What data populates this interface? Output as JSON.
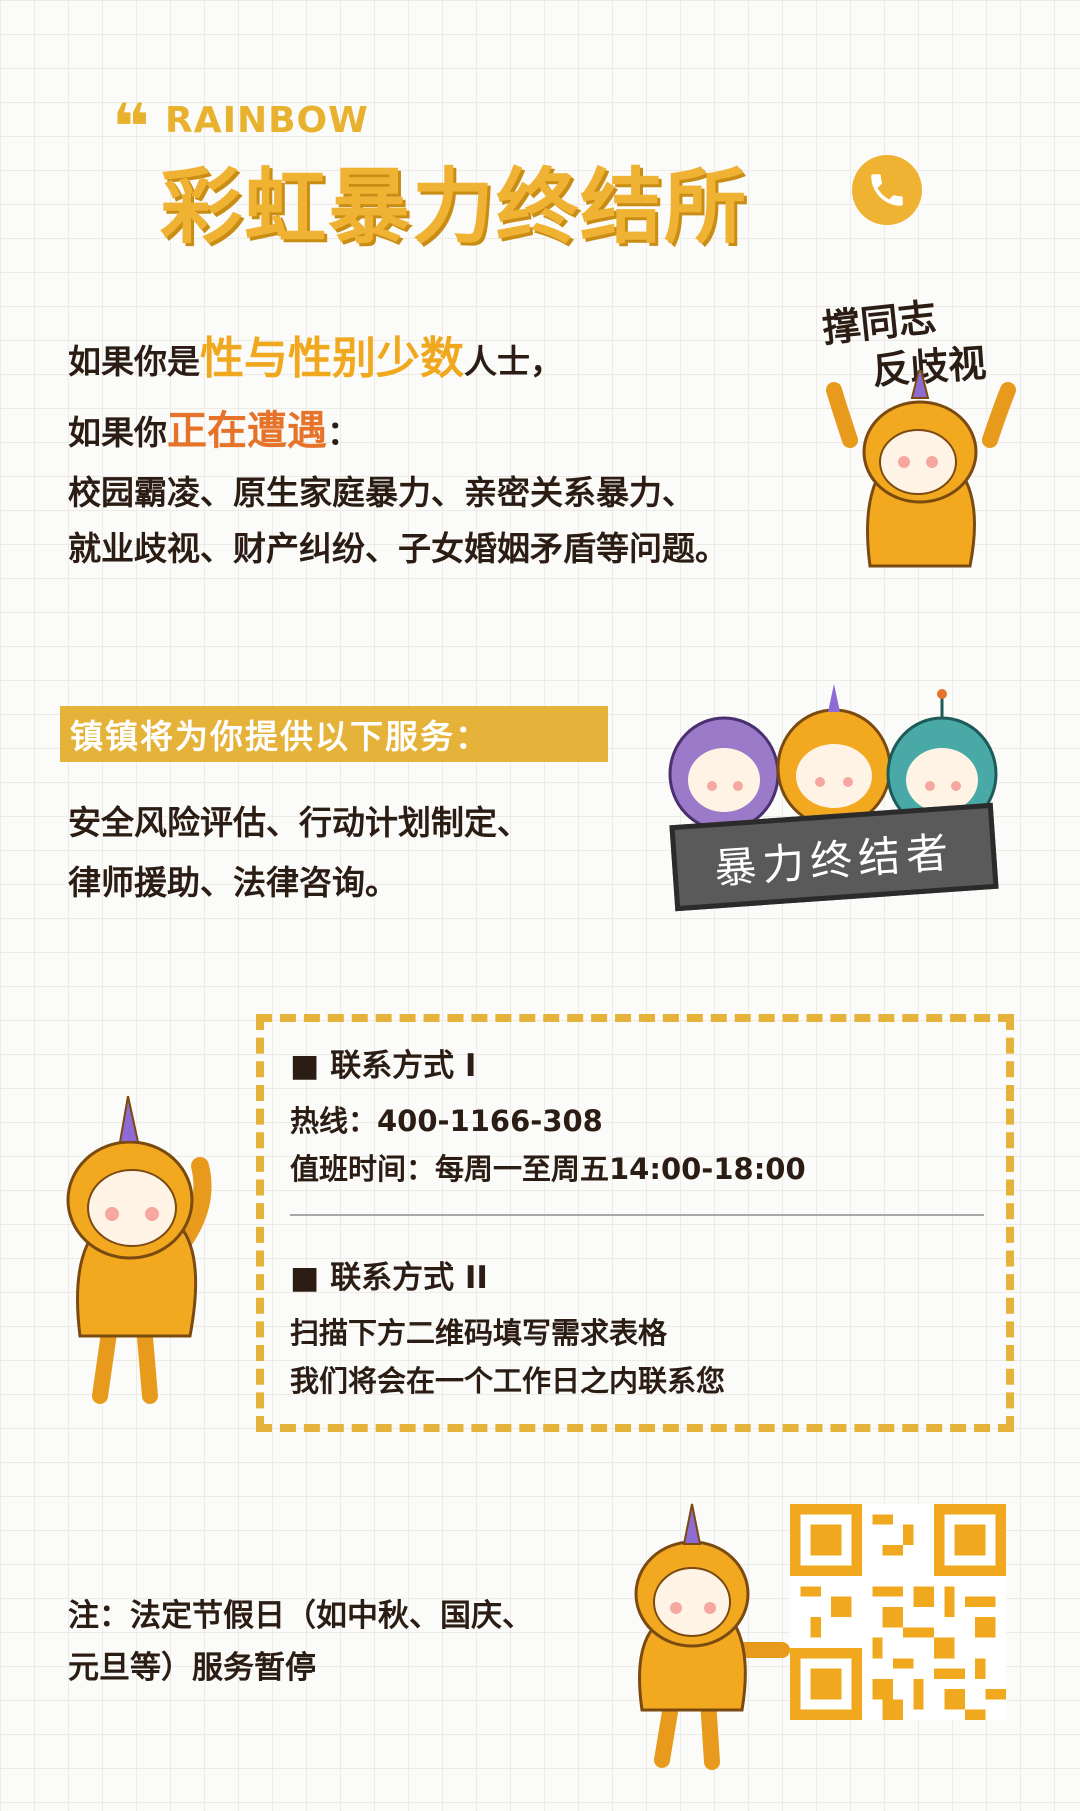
{
  "header": {
    "quote_mark": "❝",
    "brand_en": "RAINBOW",
    "brand_cn": "彩虹暴力终结所"
  },
  "intro": {
    "line1_pre": "如果你是",
    "line1_highlight": "性与性别少数",
    "line1_post": "人士，",
    "line2_pre": "如果你",
    "line2_highlight": "正在遭遇",
    "line2_post": "：",
    "line3": "校园霸凌、原生家庭暴力、亲密关系暴力、",
    "line4": "就业歧视、财产纠纷、子女婚姻矛盾等问题。"
  },
  "tag": {
    "line1": "撑同志",
    "line2": "反歧视"
  },
  "services": {
    "banner": "镇镇将为你提供以下服务：",
    "line1": "安全风险评估、行动计划制定、",
    "line2": "律师援助、法律咨询。",
    "sign": "暴力终结者"
  },
  "contact": {
    "method1_title": "■ 联系方式 I",
    "hotline": "热线：400-1166-308",
    "hours": "值班时间：每周一至周五14:00-18:00",
    "method2_title": "■ 联系方式 II",
    "method2_line1": "扫描下方二维码填写需求表格",
    "method2_line2": "我们将会在一个工作日之内联系您"
  },
  "note": {
    "line1": "注：法定节假日（如中秋、国庆、",
    "line2": "元旦等）服务暂停"
  },
  "colors": {
    "accent_yellow": "#f0b232",
    "accent_orange": "#e5742a",
    "banner": "#e6b33a",
    "text": "#2b1d14"
  }
}
